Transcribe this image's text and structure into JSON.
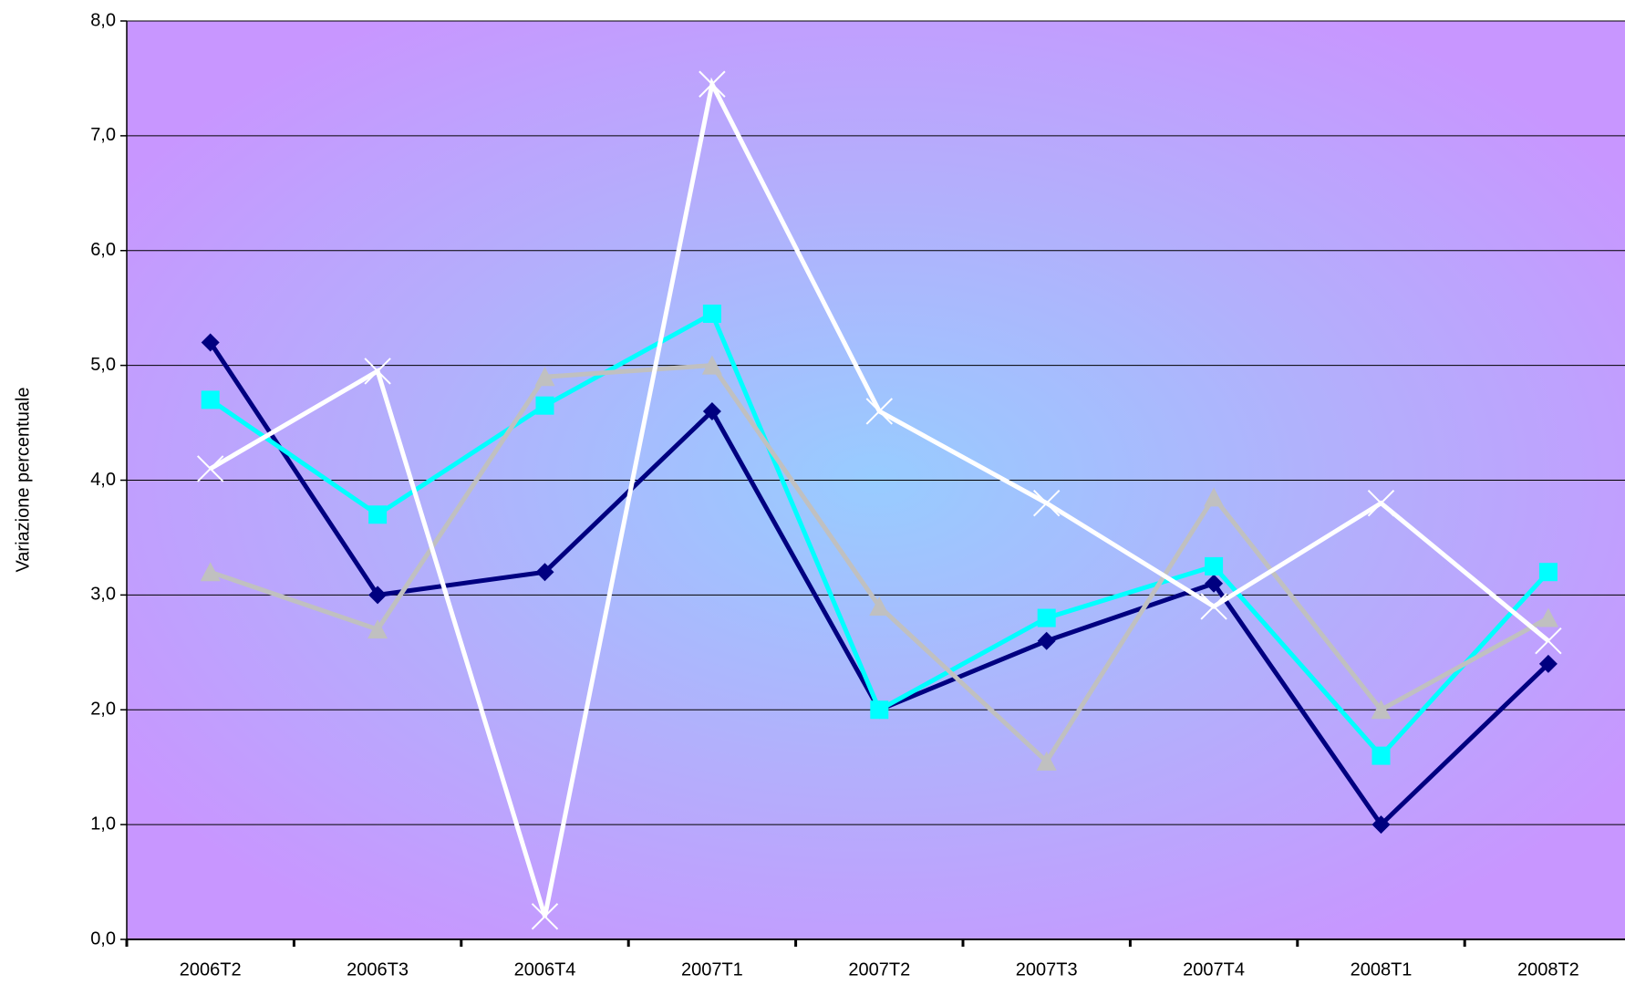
{
  "chart_data": {
    "type": "line",
    "y_label": "Variazione percentuale",
    "categories": [
      "2006T2",
      "2006T3",
      "2006T4",
      "2007T1",
      "2007T2",
      "2007T3",
      "2007T4",
      "2008T1",
      "2008T2"
    ],
    "series": [
      {
        "color": "#000080",
        "marker": "diamond",
        "values": [
          5.2,
          3.0,
          3.2,
          4.6,
          2.0,
          2.6,
          3.1,
          1.0,
          2.4
        ]
      },
      {
        "color": "#00ffff",
        "marker": "square",
        "values": [
          4.7,
          3.7,
          4.65,
          5.45,
          2.0,
          2.8,
          3.25,
          1.6,
          3.2
        ]
      },
      {
        "color": "#c0c0c0",
        "marker": "triangle",
        "values": [
          3.2,
          2.7,
          4.9,
          5.0,
          2.9,
          1.55,
          3.85,
          2.0,
          2.8
        ]
      },
      {
        "color": "#ffffff",
        "marker": "x",
        "values": [
          4.1,
          4.95,
          0.2,
          7.45,
          4.6,
          3.8,
          2.9,
          3.8,
          2.6
        ]
      }
    ],
    "ylim": [
      0,
      8
    ],
    "yticks": [
      {
        "value": 0,
        "label": "0,0"
      },
      {
        "value": 1,
        "label": "1,0"
      },
      {
        "value": 2,
        "label": "2,0"
      },
      {
        "value": 3,
        "label": "3,0"
      },
      {
        "value": 4,
        "label": "4,0"
      },
      {
        "value": 5,
        "label": "5,0"
      },
      {
        "value": 6,
        "label": "6,0"
      },
      {
        "value": 7,
        "label": "7,0"
      },
      {
        "value": 8,
        "label": "8,0"
      }
    ],
    "grid": true
  }
}
